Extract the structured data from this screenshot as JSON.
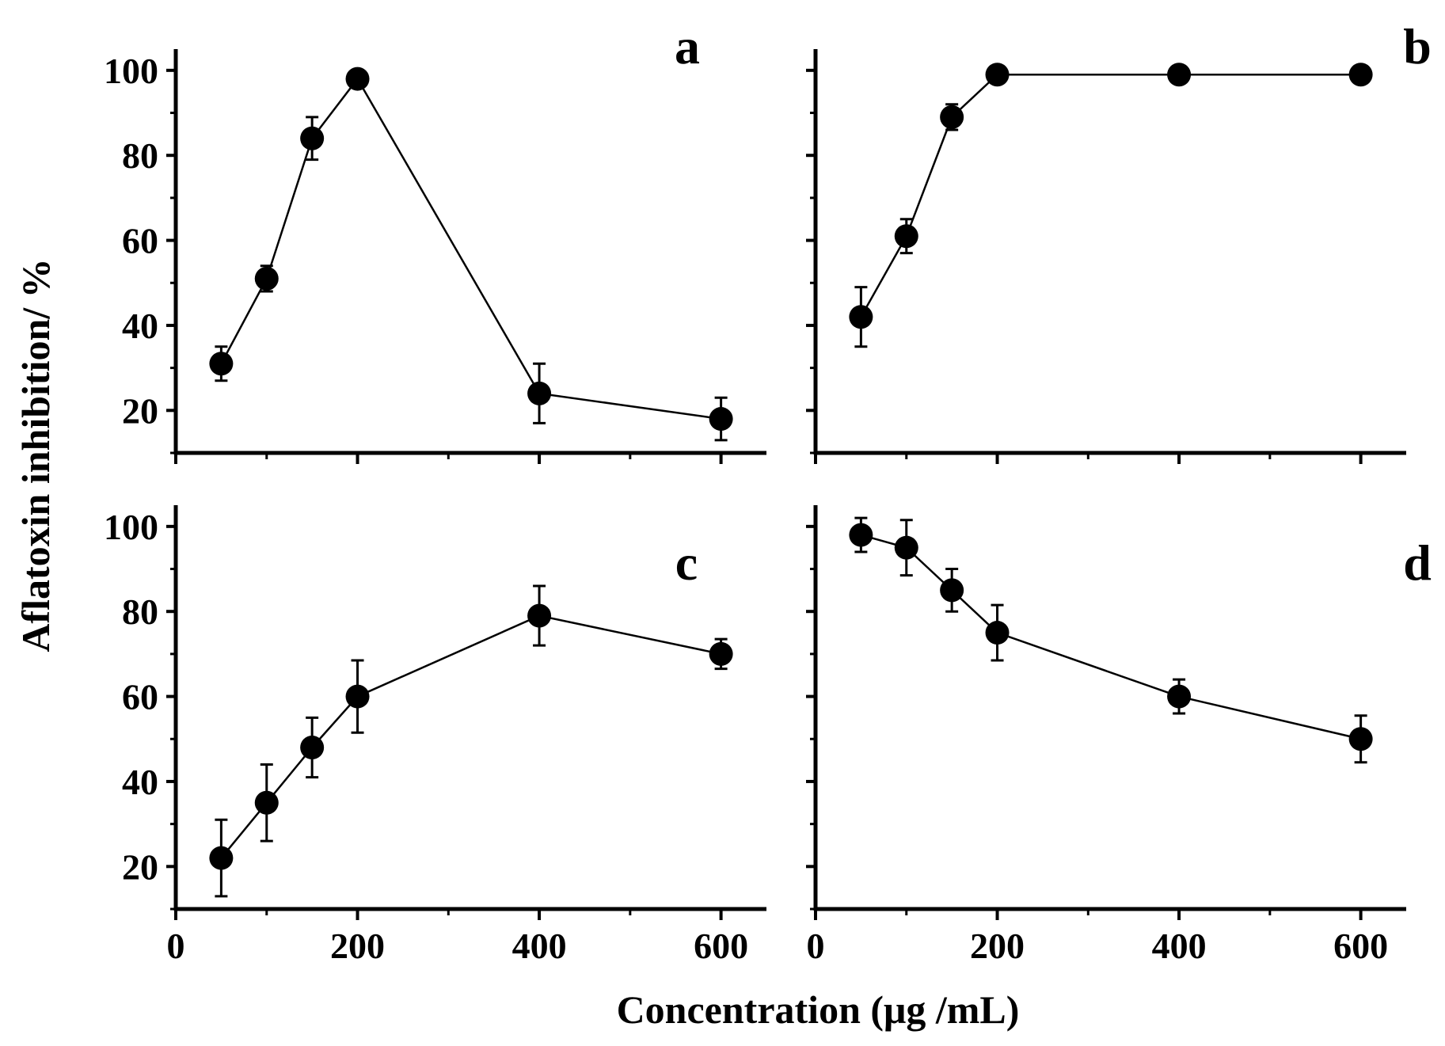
{
  "figure": {
    "ylabel": "Aflatoxin inhibition/ %",
    "xlabel": "Concentration (μg /mL)"
  },
  "chart_data": [
    {
      "type": "line",
      "panel": "a",
      "x": [
        50,
        100,
        150,
        200,
        400,
        600
      ],
      "y": [
        31,
        51,
        84,
        98,
        24,
        18
      ],
      "err": [
        4,
        3,
        5,
        0,
        7,
        5
      ],
      "xlim": [
        0,
        650
      ],
      "ylim": [
        10,
        105
      ],
      "xticks": [
        "0",
        "200",
        "400",
        "600"
      ],
      "yticks": [
        "20",
        "40",
        "60",
        "80",
        "100"
      ],
      "show_xticklabels": false,
      "show_yticklabels": true
    },
    {
      "type": "line",
      "panel": "b",
      "x": [
        50,
        100,
        150,
        200,
        400,
        600
      ],
      "y": [
        42,
        61,
        89,
        99,
        99,
        99
      ],
      "err": [
        7,
        4,
        3,
        0,
        0,
        0
      ],
      "xlim": [
        0,
        650
      ],
      "ylim": [
        10,
        105
      ],
      "xticks": [
        "0",
        "200",
        "400",
        "600"
      ],
      "yticks": [
        "20",
        "40",
        "60",
        "80",
        "100"
      ],
      "show_xticklabels": false,
      "show_yticklabels": false
    },
    {
      "type": "line",
      "panel": "c",
      "x": [
        50,
        100,
        150,
        200,
        400,
        600
      ],
      "y": [
        22,
        35,
        48,
        60,
        79,
        70
      ],
      "err": [
        9,
        9,
        7,
        8.5,
        7,
        3.5
      ],
      "xlim": [
        0,
        650
      ],
      "ylim": [
        10,
        105
      ],
      "xticks": [
        "0",
        "200",
        "400",
        "600"
      ],
      "yticks": [
        "20",
        "40",
        "60",
        "80",
        "100"
      ],
      "show_xticklabels": true,
      "show_yticklabels": true
    },
    {
      "type": "line",
      "panel": "d",
      "x": [
        50,
        100,
        150,
        200,
        400,
        600
      ],
      "y": [
        98,
        95,
        85,
        75,
        60,
        50
      ],
      "err": [
        4,
        6.5,
        5,
        6.5,
        4,
        5.5
      ],
      "xlim": [
        0,
        650
      ],
      "ylim": [
        10,
        105
      ],
      "xticks": [
        "0",
        "200",
        "400",
        "600"
      ],
      "yticks": [
        "20",
        "40",
        "60",
        "80",
        "100"
      ],
      "show_xticklabels": true,
      "show_yticklabels": false
    }
  ]
}
